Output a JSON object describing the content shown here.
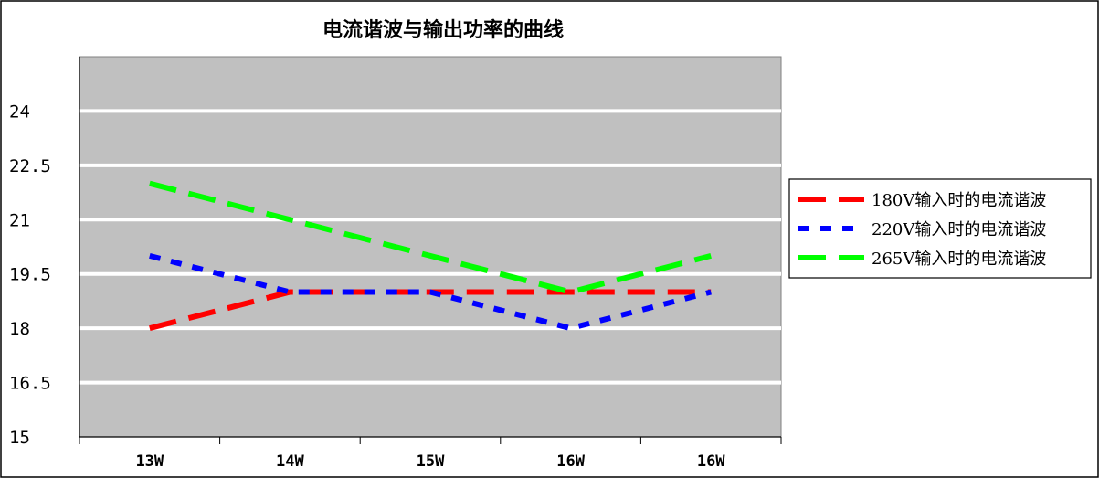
{
  "chart_data": {
    "type": "line",
    "title": "电流谐波与输出功率的曲线",
    "xlabel": "",
    "ylabel": "",
    "categories": [
      "13W",
      "14W",
      "15W",
      "16W",
      "16W"
    ],
    "ylim": [
      15,
      25.5
    ],
    "yticks": [
      15,
      16.5,
      18,
      19.5,
      21,
      22.5,
      24
    ],
    "ytick_labels": [
      "15",
      "16.5",
      "18",
      "19.5",
      "21",
      "22.5",
      "24"
    ],
    "grid": true,
    "legend_position": "right",
    "plot_background": "#c0c0c0",
    "gridline_color": "#ffffff",
    "series": [
      {
        "name": "180V输入时的电流谐波",
        "values": [
          18,
          19,
          19,
          19,
          19
        ],
        "color": "#ff0000",
        "dash": "long-dash"
      },
      {
        "name": "220V输入时的电流谐波",
        "values": [
          20,
          19,
          19,
          18,
          19
        ],
        "color": "#0000ff",
        "dash": "short-dash"
      },
      {
        "name": "265V输入时的电流谐波",
        "values": [
          22,
          21,
          20,
          19,
          20
        ],
        "color": "#00ff00",
        "dash": "long-dash"
      }
    ]
  }
}
